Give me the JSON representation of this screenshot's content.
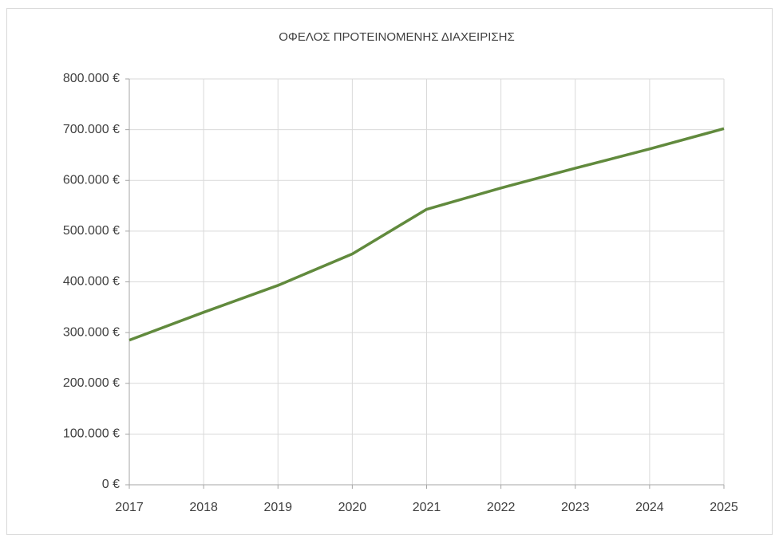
{
  "chart_data": {
    "type": "line",
    "title": "ΟΦΕΛΟΣ ΠΡΟΤΕΙΝΟΜΕΝΗΣ ΔΙΑΧΕΙΡΙΣΗΣ",
    "x": [
      2017,
      2018,
      2019,
      2020,
      2021,
      2022,
      2023,
      2024,
      2025
    ],
    "values": [
      285000,
      340000,
      393000,
      455000,
      543000,
      585000,
      624000,
      662000,
      702000
    ],
    "color": "#618a3d",
    "xlim": [
      2017,
      2025
    ],
    "xticks": [
      2017,
      2018,
      2019,
      2020,
      2021,
      2022,
      2023,
      2024,
      2025
    ],
    "ylim": [
      0,
      800000
    ],
    "yticks": [
      {
        "value": 0,
        "label": "0 €"
      },
      {
        "value": 100000,
        "label": "100.000 €"
      },
      {
        "value": 200000,
        "label": "200.000 €"
      },
      {
        "value": 300000,
        "label": "300.000 €"
      },
      {
        "value": 400000,
        "label": "400.000 €"
      },
      {
        "value": 500000,
        "label": "500.000 €"
      },
      {
        "value": 600000,
        "label": "600.000 €"
      },
      {
        "value": 700000,
        "label": "700.000 €"
      },
      {
        "value": 800000,
        "label": "800.000 €"
      }
    ],
    "grid": true
  }
}
